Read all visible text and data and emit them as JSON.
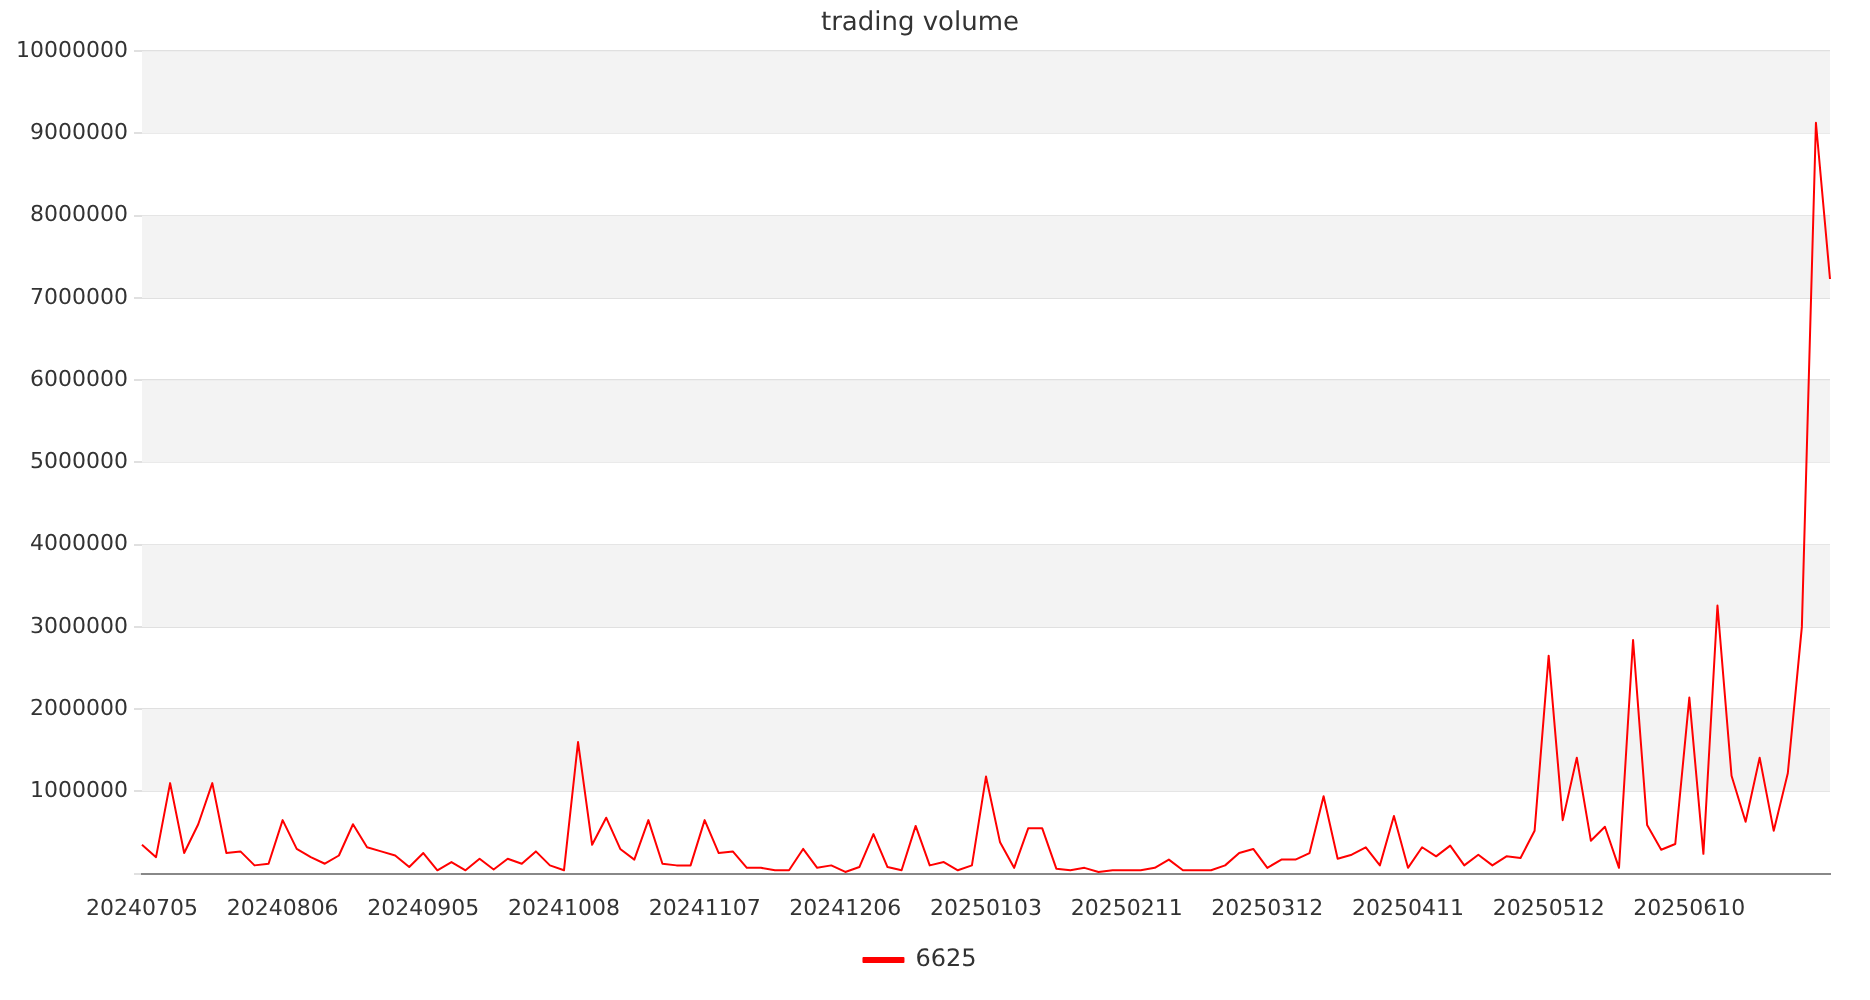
{
  "chart_data": {
    "type": "line",
    "title": "trading volume",
    "categories": [
      "20240705",
      null,
      null,
      null,
      null,
      null,
      null,
      null,
      null,
      null,
      "20240806",
      null,
      null,
      null,
      null,
      null,
      null,
      null,
      null,
      null,
      "20240905",
      null,
      null,
      null,
      null,
      null,
      null,
      null,
      null,
      null,
      "20241008",
      null,
      null,
      null,
      null,
      null,
      null,
      null,
      null,
      null,
      "20241107",
      null,
      null,
      null,
      null,
      null,
      null,
      null,
      null,
      null,
      "20241206",
      null,
      null,
      null,
      null,
      null,
      null,
      null,
      null,
      null,
      "20250103",
      null,
      null,
      null,
      null,
      null,
      null,
      null,
      null,
      null,
      "20250211",
      null,
      null,
      null,
      null,
      null,
      null,
      null,
      null,
      null,
      "20250312",
      null,
      null,
      null,
      null,
      null,
      null,
      null,
      null,
      null,
      "20250411",
      null,
      null,
      null,
      null,
      null,
      null,
      null,
      null,
      null,
      "20250512",
      null,
      null,
      null,
      null,
      null,
      null,
      null,
      null,
      null,
      "20250610",
      null,
      null,
      null,
      null,
      null,
      null,
      null,
      null,
      null,
      null
    ],
    "series": [
      {
        "name": "6625",
        "color": "#ff0000",
        "values": [
          350000,
          200000,
          1100000,
          250000,
          600000,
          1100000,
          250000,
          270000,
          100000,
          120000,
          650000,
          300000,
          200000,
          120000,
          220000,
          600000,
          320000,
          270000,
          220000,
          80000,
          250000,
          40000,
          140000,
          40000,
          180000,
          50000,
          180000,
          120000,
          270000,
          100000,
          40000,
          1600000,
          350000,
          680000,
          300000,
          170000,
          650000,
          120000,
          100000,
          100000,
          650000,
          250000,
          270000,
          70000,
          70000,
          40000,
          40000,
          300000,
          70000,
          100000,
          20000,
          80000,
          480000,
          80000,
          40000,
          580000,
          100000,
          140000,
          40000,
          100000,
          1180000,
          380000,
          70000,
          550000,
          550000,
          60000,
          40000,
          70000,
          20000,
          40000,
          40000,
          40000,
          70000,
          170000,
          40000,
          40000,
          40000,
          100000,
          250000,
          300000,
          70000,
          170000,
          170000,
          250000,
          940000,
          180000,
          230000,
          320000,
          100000,
          700000,
          70000,
          320000,
          210000,
          340000,
          100000,
          230000,
          100000,
          210000,
          190000,
          520000,
          2650000,
          650000,
          1410000,
          400000,
          570000,
          70000,
          2840000,
          590000,
          290000,
          360000,
          2140000,
          240000,
          3260000,
          1190000,
          630000,
          1410000,
          520000,
          1220000,
          3000000,
          9130000,
          7230000
        ]
      }
    ],
    "ylim": [
      0,
      10000000
    ],
    "yticks": [
      {
        "value": 0,
        "label": null
      },
      1000000,
      2000000,
      3000000,
      4000000,
      5000000,
      6000000,
      7000000,
      8000000,
      9000000,
      10000000
    ],
    "grid": "y",
    "legend": "bottom",
    "marker": "none",
    "line_style": "solid"
  }
}
